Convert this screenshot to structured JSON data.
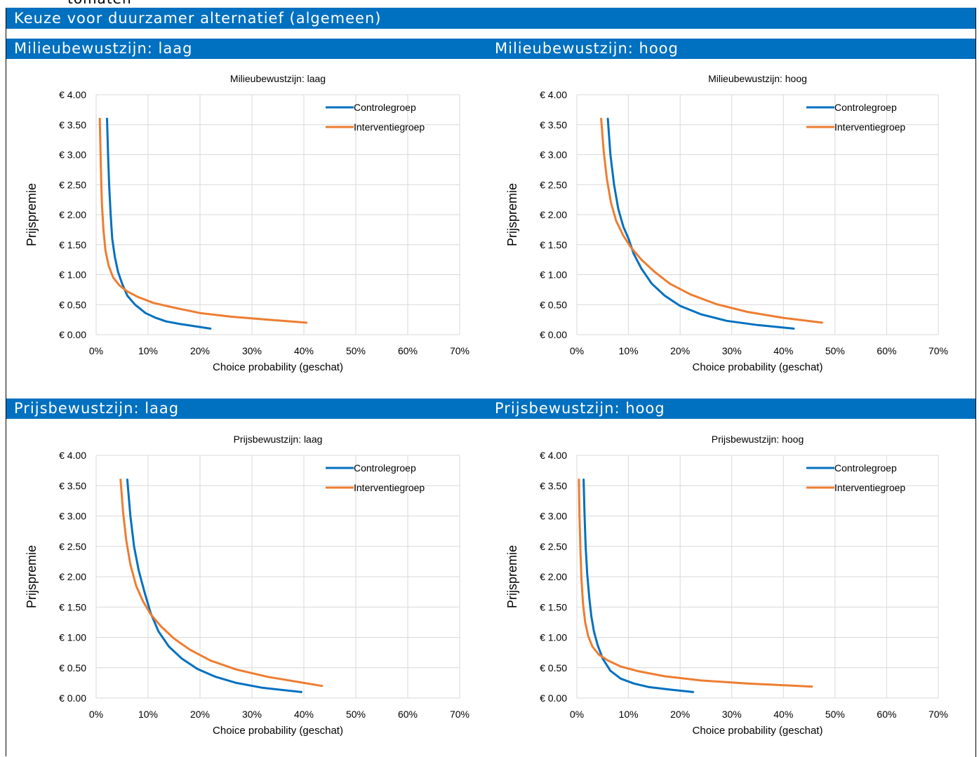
{
  "cut_text": "tomaten",
  "page_title": "Keuze voor duurzamer alternatief (algemeen)",
  "section_headers": [
    "Milieubewustzijn: laag",
    "Milieubewustzijn: hoog",
    "Prijsbewustzijn: laag",
    "Prijsbewustzijn: hoog"
  ],
  "colors": {
    "header_bg": "#0070C0",
    "controle": "#0070C0",
    "interventie": "#ED7D31",
    "grid": "#D9D9D9"
  },
  "chart_data": [
    {
      "type": "line",
      "title": "Milieubewustzijn:  laag",
      "xlabel": "Choice probability (geschat)",
      "ylabel": "Prijspremie",
      "xlim": [
        0,
        0.7
      ],
      "ylim": [
        0,
        4.0
      ],
      "x_ticks": [
        "0%",
        "10%",
        "20%",
        "30%",
        "40%",
        "50%",
        "60%",
        "70%"
      ],
      "y_ticks": [
        "€ 0.00",
        "€ 0.50",
        "€ 1.00",
        "€ 1.50",
        "€ 2.00",
        "€ 2.50",
        "€ 3.00",
        "€ 3.50",
        "€ 4.00"
      ],
      "grid": true,
      "legend_position": "top-right",
      "series": [
        {
          "name": "Controlegroep",
          "color": "#0070C0",
          "x": [
            0.021,
            0.023,
            0.025,
            0.028,
            0.031,
            0.036,
            0.042,
            0.05,
            0.06,
            0.075,
            0.095,
            0.115,
            0.135,
            0.16,
            0.19,
            0.22
          ],
          "y": [
            3.6,
            3.0,
            2.5,
            2.0,
            1.6,
            1.3,
            1.05,
            0.85,
            0.65,
            0.5,
            0.36,
            0.28,
            0.22,
            0.18,
            0.14,
            0.1
          ]
        },
        {
          "name": "Interventiegroep",
          "color": "#ED7D31",
          "x": [
            0.007,
            0.009,
            0.011,
            0.014,
            0.018,
            0.024,
            0.033,
            0.045,
            0.06,
            0.08,
            0.11,
            0.15,
            0.2,
            0.26,
            0.33,
            0.405
          ],
          "y": [
            3.6,
            2.8,
            2.2,
            1.75,
            1.4,
            1.15,
            0.95,
            0.82,
            0.72,
            0.63,
            0.53,
            0.45,
            0.36,
            0.3,
            0.25,
            0.2
          ]
        }
      ]
    },
    {
      "type": "line",
      "title": "Milieubewustzijn:  hoog",
      "xlabel": "Choice probability (geschat)",
      "ylabel": "Prijspremie",
      "xlim": [
        0,
        0.7
      ],
      "ylim": [
        0,
        4.0
      ],
      "x_ticks": [
        "0%",
        "10%",
        "20%",
        "30%",
        "40%",
        "50%",
        "60%",
        "70%"
      ],
      "y_ticks": [
        "€ 0.00",
        "€ 0.50",
        "€ 1.00",
        "€ 1.50",
        "€ 2.00",
        "€ 2.50",
        "€ 3.00",
        "€ 3.50",
        "€ 4.00"
      ],
      "grid": true,
      "legend_position": "top-right",
      "series": [
        {
          "name": "Controlegroep",
          "color": "#0070C0",
          "x": [
            0.06,
            0.065,
            0.072,
            0.08,
            0.09,
            0.1,
            0.11,
            0.125,
            0.145,
            0.17,
            0.2,
            0.24,
            0.29,
            0.35,
            0.42
          ],
          "y": [
            3.6,
            3.0,
            2.5,
            2.1,
            1.8,
            1.6,
            1.35,
            1.1,
            0.85,
            0.65,
            0.48,
            0.34,
            0.23,
            0.16,
            0.1
          ]
        },
        {
          "name": "Interventiegroep",
          "color": "#ED7D31",
          "x": [
            0.047,
            0.052,
            0.058,
            0.066,
            0.076,
            0.09,
            0.105,
            0.125,
            0.15,
            0.18,
            0.22,
            0.27,
            0.33,
            0.4,
            0.475
          ],
          "y": [
            3.6,
            3.05,
            2.6,
            2.2,
            1.9,
            1.65,
            1.45,
            1.25,
            1.05,
            0.85,
            0.67,
            0.51,
            0.38,
            0.28,
            0.2
          ]
        }
      ]
    },
    {
      "type": "line",
      "title": "Prijsbewustzijn:  laag",
      "xlabel": "Choice probability (geschat)",
      "ylabel": "Prijspremie",
      "xlim": [
        0,
        0.7
      ],
      "ylim": [
        0,
        4.0
      ],
      "x_ticks": [
        "0%",
        "10%",
        "20%",
        "30%",
        "40%",
        "50%",
        "60%",
        "70%"
      ],
      "y_ticks": [
        "€ 0.00",
        "€ 0.50",
        "€ 1.00",
        "€ 1.50",
        "€ 2.00",
        "€ 2.50",
        "€ 3.00",
        "€ 3.50",
        "€ 4.00"
      ],
      "grid": true,
      "legend_position": "top-right",
      "series": [
        {
          "name": "Controlegroep",
          "color": "#0070C0",
          "x": [
            0.06,
            0.066,
            0.073,
            0.082,
            0.093,
            0.105,
            0.12,
            0.14,
            0.165,
            0.195,
            0.23,
            0.27,
            0.32,
            0.395
          ],
          "y": [
            3.6,
            3.0,
            2.5,
            2.1,
            1.75,
            1.4,
            1.1,
            0.85,
            0.65,
            0.48,
            0.35,
            0.25,
            0.17,
            0.1
          ]
        },
        {
          "name": "Interventiegroep",
          "color": "#ED7D31",
          "x": [
            0.047,
            0.052,
            0.058,
            0.066,
            0.077,
            0.09,
            0.105,
            0.125,
            0.15,
            0.18,
            0.22,
            0.27,
            0.33,
            0.4,
            0.435
          ],
          "y": [
            3.6,
            3.05,
            2.6,
            2.2,
            1.85,
            1.6,
            1.38,
            1.18,
            0.98,
            0.8,
            0.62,
            0.47,
            0.35,
            0.25,
            0.2
          ]
        }
      ]
    },
    {
      "type": "line",
      "title": "Prijsbewustzijn:  hoog",
      "xlabel": "Choice probability (geschat)",
      "ylabel": "Prijspremie",
      "xlim": [
        0,
        0.7
      ],
      "ylim": [
        0,
        4.0
      ],
      "x_ticks": [
        "0%",
        "10%",
        "20%",
        "30%",
        "40%",
        "50%",
        "60%",
        "70%"
      ],
      "y_ticks": [
        "€ 0.00",
        "€ 0.50",
        "€ 1.00",
        "€ 1.50",
        "€ 2.00",
        "€ 2.50",
        "€ 3.00",
        "€ 3.50",
        "€ 4.00"
      ],
      "grid": true,
      "legend_position": "top-right",
      "series": [
        {
          "name": "Controlegroep",
          "color": "#0070C0",
          "x": [
            0.013,
            0.015,
            0.017,
            0.02,
            0.024,
            0.028,
            0.033,
            0.04,
            0.05,
            0.065,
            0.085,
            0.11,
            0.14,
            0.18,
            0.225
          ],
          "y": [
            3.6,
            3.0,
            2.5,
            2.05,
            1.65,
            1.35,
            1.1,
            0.88,
            0.65,
            0.45,
            0.32,
            0.24,
            0.18,
            0.14,
            0.1
          ]
        },
        {
          "name": "Interventiegroep",
          "color": "#ED7D31",
          "x": [
            0.004,
            0.005,
            0.007,
            0.009,
            0.012,
            0.016,
            0.022,
            0.03,
            0.042,
            0.06,
            0.085,
            0.12,
            0.17,
            0.24,
            0.33,
            0.455
          ],
          "y": [
            3.6,
            3.0,
            2.4,
            1.95,
            1.55,
            1.25,
            1.02,
            0.85,
            0.72,
            0.62,
            0.52,
            0.44,
            0.36,
            0.29,
            0.24,
            0.19
          ]
        }
      ]
    }
  ]
}
